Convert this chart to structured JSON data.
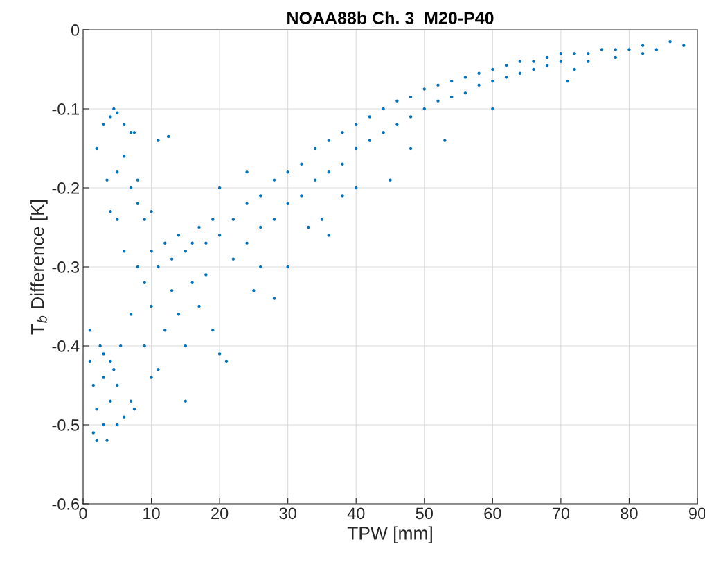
{
  "chart_data": {
    "type": "scatter",
    "title": "NOAA88b Ch. 3  M20-P40",
    "xlabel": "TPW [mm]",
    "ylabel": "T$_{b}$ Difference [K]",
    "xlim": [
      0,
      90
    ],
    "xticks": [
      0,
      10,
      20,
      30,
      40,
      50,
      60,
      70,
      80,
      90
    ],
    "ylim": [
      -0.6,
      0
    ],
    "yticks": [
      -0.6,
      -0.5,
      -0.4,
      -0.3,
      -0.2,
      -0.1,
      0
    ],
    "grid": true,
    "marker": "circle",
    "series": [
      {
        "color": "#0072bd",
        "x": [
          1,
          1,
          1.5,
          2,
          2,
          2.5,
          3,
          3,
          3.5,
          4,
          4,
          5,
          5,
          6,
          7,
          7.5,
          1.5,
          4.5,
          3,
          5.5,
          2,
          3,
          4,
          4.5,
          5,
          6,
          7,
          7.5,
          8,
          5,
          6,
          7,
          3.5,
          5,
          8,
          9,
          10,
          11,
          12.5,
          6,
          4,
          8,
          9,
          10,
          10,
          11,
          12,
          12,
          13,
          13,
          14,
          14,
          15,
          15,
          15,
          16,
          16,
          17,
          17,
          18,
          18,
          19,
          19,
          20,
          20,
          21,
          11,
          9,
          7,
          10,
          22,
          22,
          24,
          24,
          25,
          26,
          26,
          28,
          28,
          28,
          30,
          30,
          30,
          32,
          32,
          34,
          34,
          35,
          36,
          36,
          38,
          38,
          40,
          40,
          40,
          42,
          42,
          44,
          44,
          45,
          46,
          46,
          48,
          48,
          50,
          50,
          52,
          52,
          53,
          54,
          54,
          56,
          56,
          58,
          58,
          60,
          60,
          60,
          62,
          62,
          64,
          64,
          66,
          66,
          68,
          68,
          70,
          70,
          72,
          72,
          74,
          74,
          76,
          78,
          78,
          80,
          82,
          82,
          84,
          86,
          88,
          71,
          20,
          24,
          26,
          33,
          38,
          48,
          36
        ],
        "values": [
          -0.38,
          -0.42,
          -0.45,
          -0.52,
          -0.48,
          -0.4,
          -0.44,
          -0.5,
          -0.52,
          -0.47,
          -0.42,
          -0.5,
          -0.45,
          -0.49,
          -0.47,
          -0.48,
          -0.51,
          -0.43,
          -0.41,
          -0.4,
          -0.15,
          -0.12,
          -0.11,
          -0.1,
          -0.105,
          -0.12,
          -0.13,
          -0.13,
          -0.19,
          -0.18,
          -0.16,
          -0.2,
          -0.19,
          -0.24,
          -0.22,
          -0.24,
          -0.23,
          -0.14,
          -0.135,
          -0.28,
          -0.23,
          -0.3,
          -0.32,
          -0.28,
          -0.35,
          -0.3,
          -0.27,
          -0.38,
          -0.29,
          -0.33,
          -0.26,
          -0.36,
          -0.28,
          -0.4,
          -0.47,
          -0.27,
          -0.32,
          -0.25,
          -0.35,
          -0.27,
          -0.31,
          -0.24,
          -0.38,
          -0.26,
          -0.41,
          -0.42,
          -0.43,
          -0.4,
          -0.36,
          -0.44,
          -0.24,
          -0.29,
          -0.22,
          -0.27,
          -0.33,
          -0.21,
          -0.25,
          -0.19,
          -0.24,
          -0.34,
          -0.18,
          -0.22,
          -0.3,
          -0.17,
          -0.21,
          -0.15,
          -0.19,
          -0.24,
          -0.14,
          -0.18,
          -0.13,
          -0.17,
          -0.12,
          -0.15,
          -0.2,
          -0.11,
          -0.14,
          -0.1,
          -0.13,
          -0.19,
          -0.09,
          -0.12,
          -0.085,
          -0.11,
          -0.075,
          -0.1,
          -0.07,
          -0.09,
          -0.14,
          -0.065,
          -0.085,
          -0.06,
          -0.08,
          -0.055,
          -0.07,
          -0.05,
          -0.065,
          -0.1,
          -0.045,
          -0.06,
          -0.04,
          -0.055,
          -0.04,
          -0.05,
          -0.035,
          -0.045,
          -0.03,
          -0.04,
          -0.03,
          -0.05,
          -0.03,
          -0.04,
          -0.025,
          -0.025,
          -0.035,
          -0.025,
          -0.02,
          -0.03,
          -0.025,
          -0.015,
          -0.02,
          -0.065,
          -0.2,
          -0.18,
          -0.3,
          -0.25,
          -0.21,
          -0.15,
          -0.26
        ]
      }
    ]
  }
}
